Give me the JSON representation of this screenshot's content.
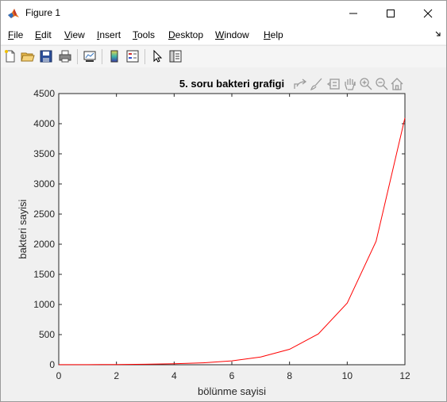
{
  "window": {
    "title": "Figure 1",
    "controls": [
      "minimize",
      "maximize",
      "close"
    ]
  },
  "menubar": {
    "items": [
      {
        "label": "File",
        "mnemonic": "F",
        "rest": "ile"
      },
      {
        "label": "Edit",
        "mnemonic": "E",
        "rest": "dit"
      },
      {
        "label": "View",
        "mnemonic": "V",
        "rest": "iew"
      },
      {
        "label": "Insert",
        "mnemonic": "I",
        "rest": "nsert"
      },
      {
        "label": "Tools",
        "mnemonic": "T",
        "rest": "ools"
      },
      {
        "label": "Desktop",
        "mnemonic": "D",
        "rest": "esktop"
      },
      {
        "label": "Window",
        "mnemonic": "W",
        "rest": "indow"
      },
      {
        "label": "Help",
        "mnemonic": "H",
        "rest": "elp"
      }
    ]
  },
  "toolbar": {
    "icons": [
      "new-figure-icon",
      "open-file-icon",
      "save-icon",
      "print-icon",
      "link-plot-icon",
      "colorbar-icon",
      "legend-icon",
      "edit-plot-icon",
      "property-inspector-icon"
    ]
  },
  "axes_toolbar": {
    "icons": [
      "export-icon",
      "brush-icon",
      "datatip-icon",
      "pan-icon",
      "zoom-in-icon",
      "zoom-out-icon",
      "home-icon"
    ]
  },
  "chart_data": {
    "type": "line",
    "title": "5. soru bakteri grafigi",
    "xlabel": "bölünme sayisi",
    "ylabel": "bakteri sayisi",
    "xlim": [
      0,
      12
    ],
    "ylim": [
      0,
      4500
    ],
    "xticks": [
      0,
      2,
      4,
      6,
      8,
      10,
      12
    ],
    "yticks": [
      0,
      500,
      1000,
      1500,
      2000,
      2500,
      3000,
      3500,
      4000,
      4500
    ],
    "grid": false,
    "series": [
      {
        "color": "#ff0000",
        "x": [
          0,
          1,
          2,
          3,
          4,
          5,
          6,
          7,
          8,
          9,
          10,
          11,
          12
        ],
        "y": [
          1,
          2,
          4,
          8,
          16,
          32,
          64,
          128,
          256,
          512,
          1024,
          2048,
          4096
        ]
      }
    ]
  }
}
